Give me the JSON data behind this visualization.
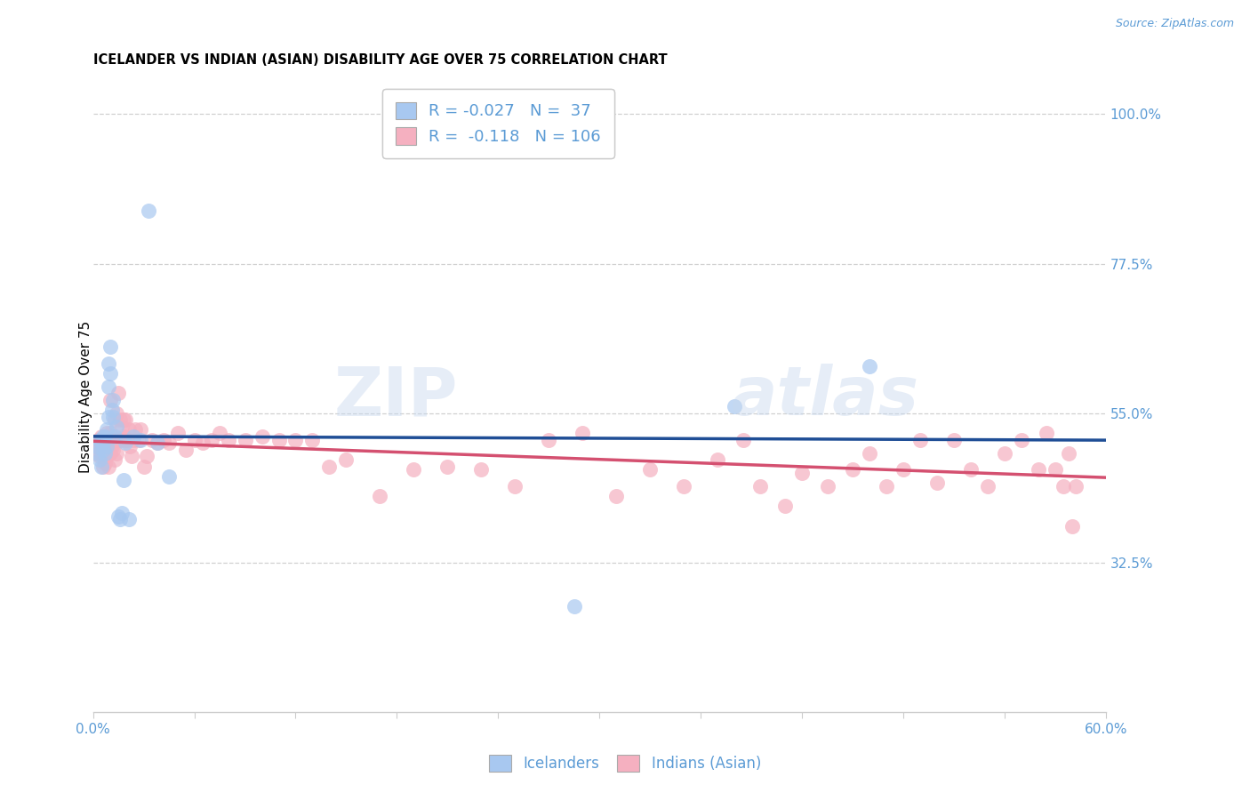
{
  "title": "ICELANDER VS INDIAN (ASIAN) DISABILITY AGE OVER 75 CORRELATION CHART",
  "source": "Source: ZipAtlas.com",
  "ylabel": "Disability Age Over 75",
  "xlim": [
    0.0,
    0.6
  ],
  "ylim": [
    0.1,
    1.05
  ],
  "ytick_positions": [
    0.325,
    0.55,
    0.775,
    1.0
  ],
  "ytick_labels": [
    "32.5%",
    "55.0%",
    "77.5%",
    "100.0%"
  ],
  "xtick_positions": [
    0.0,
    0.06,
    0.12,
    0.18,
    0.24,
    0.3,
    0.36,
    0.42,
    0.48,
    0.54,
    0.6
  ],
  "label_color": "#5b9bd5",
  "legend_r1": "R = -0.027",
  "legend_n1": "N =  37",
  "legend_r2": "R =  -0.118",
  "legend_n2": "N = 106",
  "blue_fill": "#a8c8f0",
  "pink_fill": "#f5b0c0",
  "blue_edge": "#7fb3e8",
  "pink_edge": "#f090a8",
  "blue_line": "#1f4e96",
  "pink_line": "#d45070",
  "icelanders_x": [
    0.002,
    0.003,
    0.004,
    0.004,
    0.005,
    0.005,
    0.006,
    0.006,
    0.006,
    0.007,
    0.007,
    0.008,
    0.008,
    0.009,
    0.009,
    0.009,
    0.01,
    0.01,
    0.011,
    0.012,
    0.012,
    0.013,
    0.014,
    0.015,
    0.016,
    0.017,
    0.018,
    0.019,
    0.021,
    0.024,
    0.028,
    0.033,
    0.038,
    0.045,
    0.285,
    0.38,
    0.46
  ],
  "icelanders_y": [
    0.5,
    0.49,
    0.48,
    0.51,
    0.505,
    0.47,
    0.495,
    0.505,
    0.515,
    0.49,
    0.515,
    0.5,
    0.525,
    0.545,
    0.59,
    0.625,
    0.61,
    0.65,
    0.555,
    0.545,
    0.57,
    0.515,
    0.53,
    0.395,
    0.39,
    0.4,
    0.45,
    0.505,
    0.39,
    0.515,
    0.51,
    0.855,
    0.505,
    0.455,
    0.26,
    0.56,
    0.62
  ],
  "indians_x": [
    0.001,
    0.002,
    0.002,
    0.003,
    0.003,
    0.004,
    0.004,
    0.005,
    0.005,
    0.005,
    0.006,
    0.006,
    0.006,
    0.007,
    0.007,
    0.007,
    0.008,
    0.008,
    0.008,
    0.009,
    0.009,
    0.009,
    0.01,
    0.01,
    0.01,
    0.01,
    0.011,
    0.011,
    0.012,
    0.012,
    0.013,
    0.013,
    0.014,
    0.014,
    0.015,
    0.015,
    0.016,
    0.016,
    0.017,
    0.017,
    0.018,
    0.018,
    0.019,
    0.019,
    0.02,
    0.021,
    0.022,
    0.023,
    0.024,
    0.025,
    0.027,
    0.028,
    0.03,
    0.032,
    0.035,
    0.038,
    0.042,
    0.045,
    0.05,
    0.055,
    0.06,
    0.065,
    0.07,
    0.075,
    0.08,
    0.09,
    0.1,
    0.11,
    0.12,
    0.13,
    0.14,
    0.15,
    0.17,
    0.19,
    0.21,
    0.23,
    0.25,
    0.27,
    0.29,
    0.31,
    0.33,
    0.35,
    0.37,
    0.385,
    0.395,
    0.41,
    0.42,
    0.435,
    0.45,
    0.46,
    0.47,
    0.48,
    0.49,
    0.5,
    0.51,
    0.52,
    0.53,
    0.54,
    0.55,
    0.56,
    0.565,
    0.57,
    0.575,
    0.578,
    0.58,
    0.582
  ],
  "indians_y": [
    0.5,
    0.505,
    0.49,
    0.51,
    0.495,
    0.485,
    0.51,
    0.5,
    0.515,
    0.49,
    0.47,
    0.49,
    0.51,
    0.475,
    0.49,
    0.51,
    0.485,
    0.5,
    0.52,
    0.47,
    0.49,
    0.51,
    0.49,
    0.505,
    0.52,
    0.57,
    0.5,
    0.515,
    0.495,
    0.51,
    0.48,
    0.54,
    0.49,
    0.55,
    0.51,
    0.58,
    0.51,
    0.54,
    0.51,
    0.53,
    0.515,
    0.54,
    0.51,
    0.54,
    0.51,
    0.525,
    0.5,
    0.485,
    0.51,
    0.525,
    0.51,
    0.525,
    0.47,
    0.485,
    0.51,
    0.505,
    0.51,
    0.505,
    0.52,
    0.495,
    0.51,
    0.505,
    0.51,
    0.52,
    0.51,
    0.51,
    0.515,
    0.51,
    0.51,
    0.51,
    0.47,
    0.48,
    0.425,
    0.465,
    0.47,
    0.465,
    0.44,
    0.51,
    0.52,
    0.425,
    0.465,
    0.44,
    0.48,
    0.51,
    0.44,
    0.41,
    0.46,
    0.44,
    0.465,
    0.49,
    0.44,
    0.465,
    0.51,
    0.445,
    0.51,
    0.465,
    0.44,
    0.49,
    0.51,
    0.465,
    0.52,
    0.465,
    0.44,
    0.49,
    0.38,
    0.44
  ]
}
